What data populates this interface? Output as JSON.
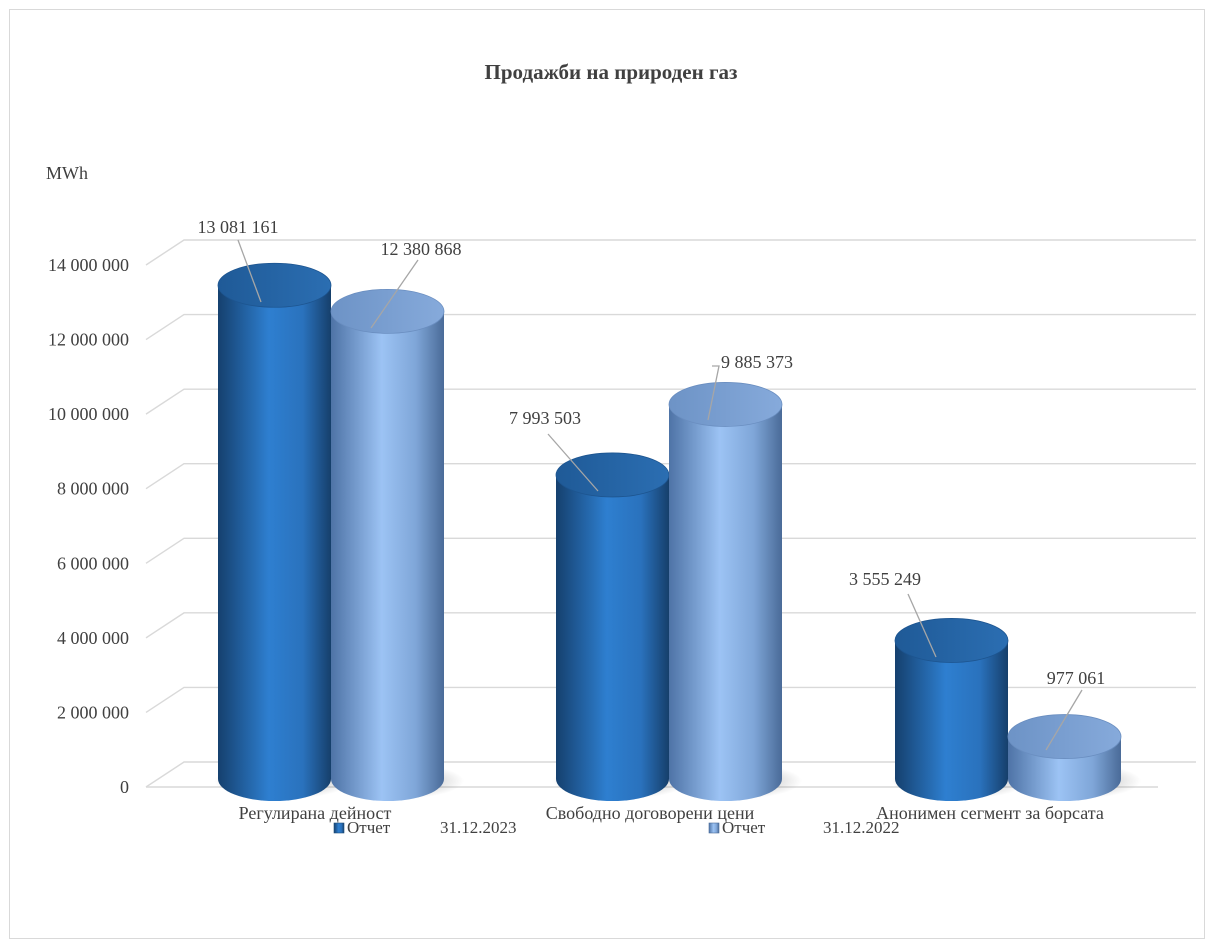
{
  "chart_data": {
    "type": "bar",
    "title": "Продажби на природен газ",
    "ylabel": "MWh",
    "xlabel": "",
    "categories": [
      "Регулирана дейност",
      "Свободно договорени цени",
      "Анонимен сегмент за борсата"
    ],
    "series": [
      {
        "name": "Отчет 31.12.2023",
        "legend_label": "Отчет",
        "legend_date": "31.12.2023",
        "values": [
          13081161,
          7993503,
          3555249
        ],
        "labels": [
          "13 081 161",
          "7 993 503",
          "3 555 249"
        ],
        "color": "#2e75b6"
      },
      {
        "name": "Отчет 31.12.2022",
        "legend_label": "Отчет",
        "legend_date": "31.12.2022",
        "values": [
          12380868,
          9885373,
          977061
        ],
        "labels": [
          "12 380 868",
          "9 885 373",
          "977 061"
        ],
        "color": "#7fa6d8"
      }
    ],
    "ylim": [
      0,
      14000000
    ],
    "yticks": [
      "0",
      "2 000 000",
      "4 000 000",
      "6 000 000",
      "8 000 000",
      "10 000 000",
      "12 000 000",
      "14 000 000"
    ],
    "bar_shape": "cylinder",
    "grid": true,
    "legend_position": "bottom"
  }
}
